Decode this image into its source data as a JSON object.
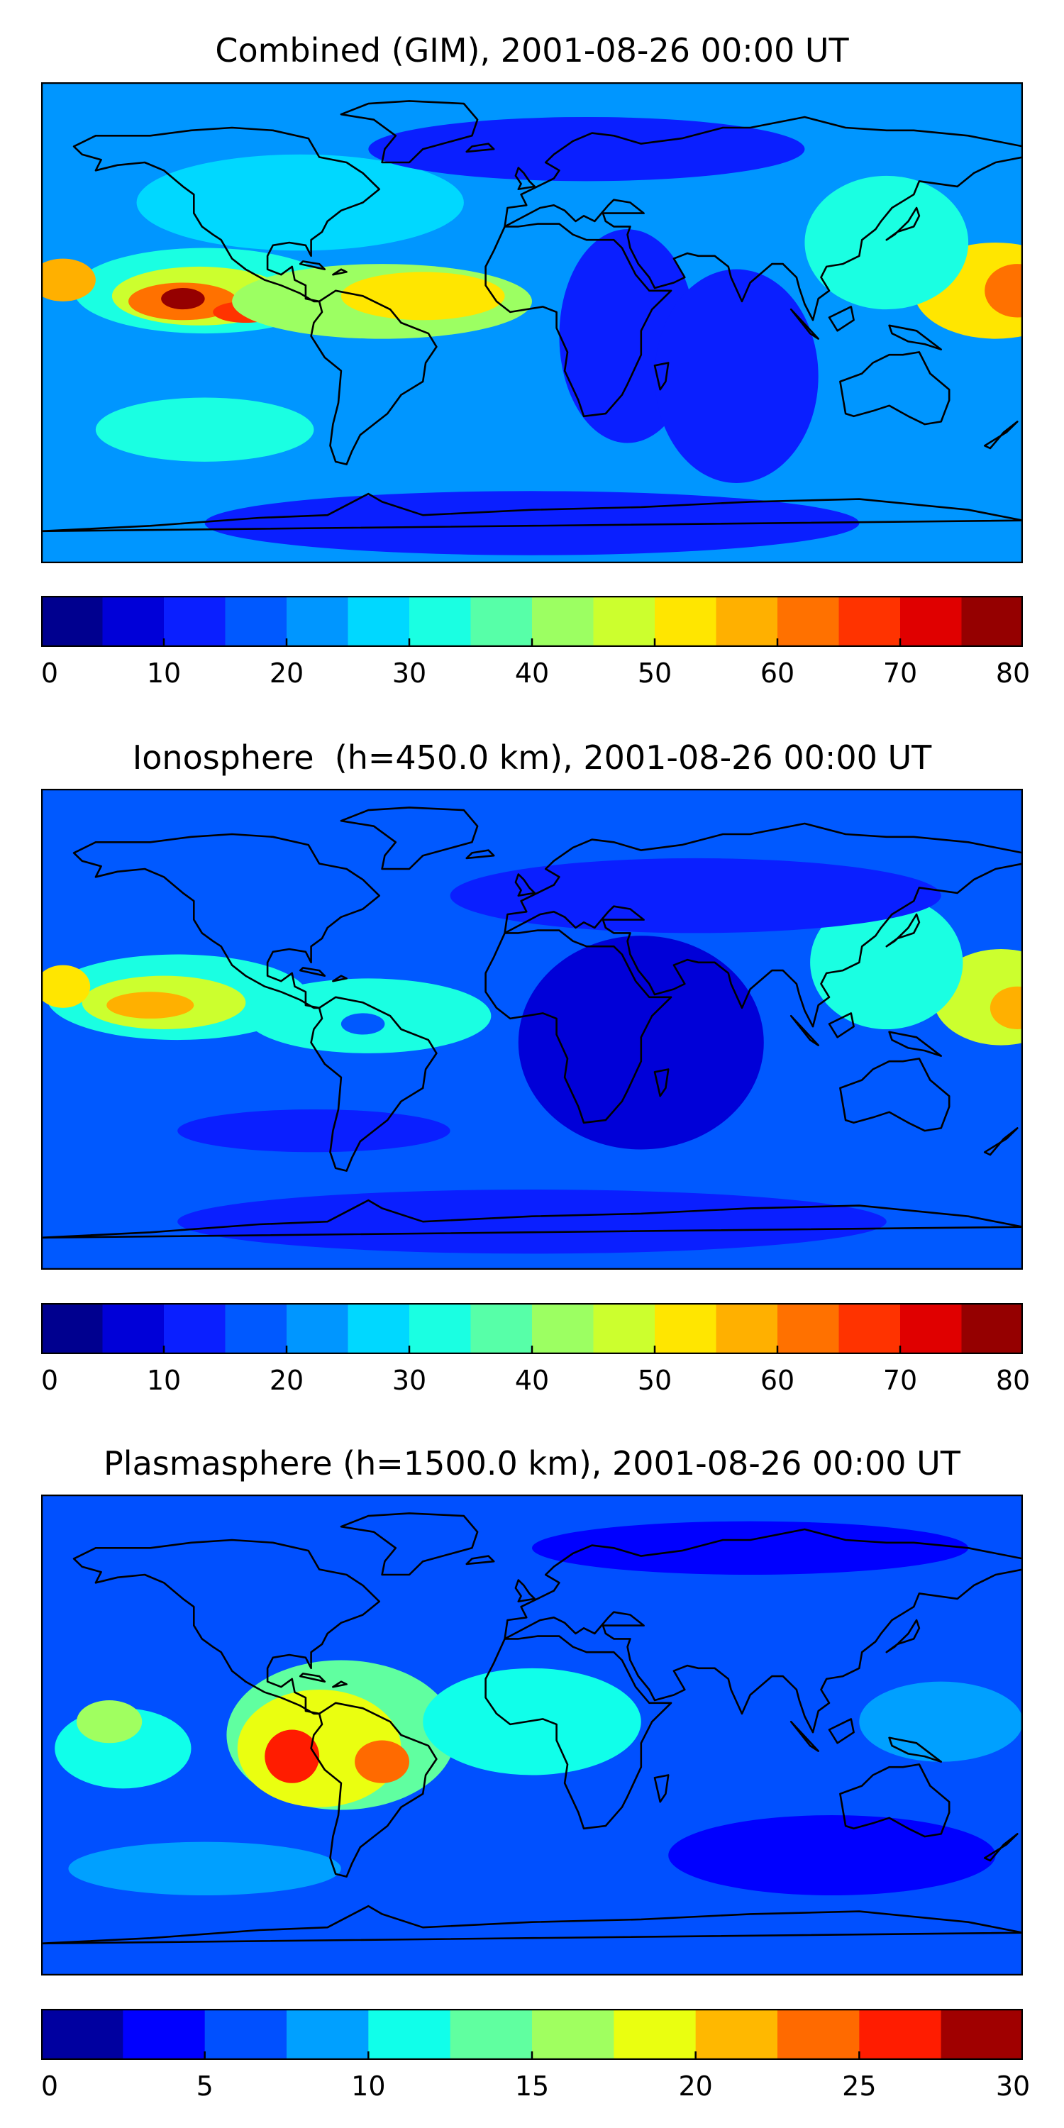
{
  "panels": [
    {
      "title": "Combined (GIM), 2001-08-26 00:00 UT",
      "colorbar": {
        "min": 0,
        "max": 80,
        "step": 5,
        "ticks": [
          "0",
          "10",
          "20",
          "30",
          "40",
          "50",
          "60",
          "70",
          "80"
        ],
        "colors": [
          "#00008f",
          "#0000d8",
          "#0a1fff",
          "#0059ff",
          "#0096ff",
          "#00d8ff",
          "#1affe2",
          "#57ffa8",
          "#9cff62",
          "#ccff2e",
          "#ffe600",
          "#ffb000",
          "#ff7100",
          "#ff3300",
          "#e00000",
          "#950000"
        ]
      },
      "field": {
        "background": 20,
        "features": [
          {
            "lon": -120,
            "lat": 12,
            "rx": 48,
            "ry": 16,
            "value": 34
          },
          {
            "lon": -122,
            "lat": 10,
            "rx": 32,
            "ry": 11,
            "value": 48
          },
          {
            "lon": -128,
            "lat": 8,
            "rx": 20,
            "ry": 7,
            "value": 62
          },
          {
            "lon": -128,
            "lat": 9,
            "rx": 8,
            "ry": 4,
            "value": 76
          },
          {
            "lon": -105,
            "lat": 4,
            "rx": 12,
            "ry": 4,
            "value": 68
          },
          {
            "lon": -172,
            "lat": 16,
            "rx": 12,
            "ry": 8,
            "value": 58
          },
          {
            "lon": -55,
            "lat": 8,
            "rx": 55,
            "ry": 14,
            "value": 40
          },
          {
            "lon": -40,
            "lat": 10,
            "rx": 30,
            "ry": 9,
            "value": 52
          },
          {
            "lon": 170,
            "lat": 12,
            "rx": 30,
            "ry": 18,
            "value": 54
          },
          {
            "lon": 178,
            "lat": 12,
            "rx": 12,
            "ry": 10,
            "value": 64
          },
          {
            "lon": 130,
            "lat": 30,
            "rx": 30,
            "ry": 25,
            "value": 32
          },
          {
            "lon": -85,
            "lat": 45,
            "rx": 60,
            "ry": 18,
            "value": 26
          },
          {
            "lon": 35,
            "lat": -5,
            "rx": 25,
            "ry": 40,
            "value": 13
          },
          {
            "lon": 75,
            "lat": -20,
            "rx": 30,
            "ry": 40,
            "value": 11
          },
          {
            "lon": 20,
            "lat": 65,
            "rx": 80,
            "ry": 12,
            "value": 12
          },
          {
            "lon": 0,
            "lat": -75,
            "rx": 120,
            "ry": 12,
            "value": 12
          },
          {
            "lon": -120,
            "lat": -40,
            "rx": 40,
            "ry": 12,
            "value": 30
          }
        ]
      }
    },
    {
      "title": "Ionosphere  (h=450.0 km), 2001-08-26 00:00 UT",
      "colorbar": {
        "min": 0,
        "max": 80,
        "step": 5,
        "ticks": [
          "0",
          "10",
          "20",
          "30",
          "40",
          "50",
          "60",
          "70",
          "80"
        ],
        "colors": [
          "#00008f",
          "#0000d8",
          "#0a1fff",
          "#0059ff",
          "#0096ff",
          "#00d8ff",
          "#1affe2",
          "#57ffa8",
          "#9cff62",
          "#ccff2e",
          "#ffe600",
          "#ffb000",
          "#ff7100",
          "#ff3300",
          "#e00000",
          "#950000"
        ]
      },
      "field": {
        "background": 18,
        "features": [
          {
            "lon": -130,
            "lat": 12,
            "rx": 48,
            "ry": 16,
            "value": 30
          },
          {
            "lon": -135,
            "lat": 10,
            "rx": 30,
            "ry": 10,
            "value": 46
          },
          {
            "lon": -140,
            "lat": 9,
            "rx": 16,
            "ry": 5,
            "value": 58
          },
          {
            "lon": -172,
            "lat": 16,
            "rx": 10,
            "ry": 8,
            "value": 50
          },
          {
            "lon": -60,
            "lat": 5,
            "rx": 45,
            "ry": 14,
            "value": 32
          },
          {
            "lon": -62,
            "lat": 2,
            "rx": 8,
            "ry": 4,
            "value": 16
          },
          {
            "lon": 172,
            "lat": 12,
            "rx": 25,
            "ry": 18,
            "value": 46
          },
          {
            "lon": 178,
            "lat": 8,
            "rx": 10,
            "ry": 8,
            "value": 58
          },
          {
            "lon": 130,
            "lat": 25,
            "rx": 28,
            "ry": 25,
            "value": 30
          },
          {
            "lon": 40,
            "lat": -5,
            "rx": 45,
            "ry": 40,
            "value": 9
          },
          {
            "lon": 60,
            "lat": 50,
            "rx": 90,
            "ry": 14,
            "value": 11
          },
          {
            "lon": 0,
            "lat": -72,
            "rx": 130,
            "ry": 12,
            "value": 10
          },
          {
            "lon": -80,
            "lat": -38,
            "rx": 50,
            "ry": 8,
            "value": 14
          }
        ]
      }
    },
    {
      "title": "Plasmasphere (h=1500.0 km), 2001-08-26 00:00 UT",
      "colorbar": {
        "min": 0,
        "max": 30,
        "step": 2.5,
        "ticks": [
          "0",
          "5",
          "10",
          "15",
          "20",
          "25",
          "30"
        ],
        "colors": [
          "#0000a0",
          "#0000ff",
          "#0050ff",
          "#00a0ff",
          "#10ffea",
          "#60ffa0",
          "#a0ff60",
          "#eaff10",
          "#ffb800",
          "#ff6a00",
          "#ff1c00",
          "#a00000"
        ]
      },
      "field": {
        "background": 5,
        "features": [
          {
            "lon": -70,
            "lat": 0,
            "rx": 42,
            "ry": 28,
            "value": 13
          },
          {
            "lon": -78,
            "lat": -5,
            "rx": 30,
            "ry": 22,
            "value": 18
          },
          {
            "lon": -88,
            "lat": -8,
            "rx": 10,
            "ry": 10,
            "value": 25
          },
          {
            "lon": -55,
            "lat": -10,
            "rx": 10,
            "ry": 8,
            "value": 24
          },
          {
            "lon": -150,
            "lat": -5,
            "rx": 25,
            "ry": 15,
            "value": 11
          },
          {
            "lon": -155,
            "lat": 5,
            "rx": 12,
            "ry": 8,
            "value": 16
          },
          {
            "lon": 0,
            "lat": 5,
            "rx": 40,
            "ry": 20,
            "value": 10
          },
          {
            "lon": -120,
            "lat": -50,
            "rx": 50,
            "ry": 10,
            "value": 9
          },
          {
            "lon": 150,
            "lat": 5,
            "rx": 30,
            "ry": 15,
            "value": 8
          },
          {
            "lon": 110,
            "lat": -45,
            "rx": 60,
            "ry": 15,
            "value": 3
          },
          {
            "lon": 80,
            "lat": 70,
            "rx": 80,
            "ry": 10,
            "value": 3
          }
        ]
      }
    }
  ]
}
